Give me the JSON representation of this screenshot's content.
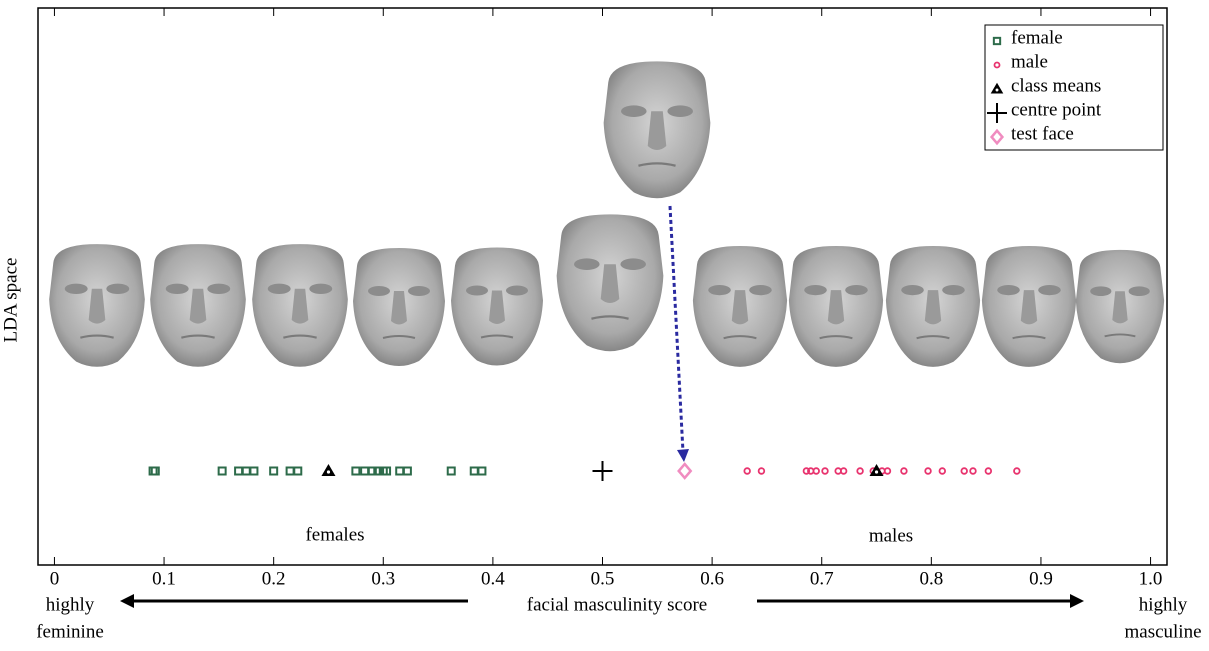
{
  "chart_data": {
    "type": "scatter",
    "ylabel": "LDA space",
    "xlabel": "facial masculinity score",
    "xlim": [
      -0.015,
      1.015
    ],
    "xticks": [
      0,
      0.1,
      0.2,
      0.3,
      0.4,
      0.5,
      0.6,
      0.7,
      0.8,
      0.9,
      {
        "value": 1,
        "label": "1.0"
      }
    ],
    "legend": "upper right",
    "group_labels": [
      "females",
      "males"
    ],
    "low_label": [
      "highly",
      "feminine"
    ],
    "high_label": [
      "highly",
      "masculine"
    ],
    "low_color": "#2a8a2a",
    "high_color": "#e020e0",
    "series": [
      {
        "name": "female",
        "color": "#2d6b4a",
        "marker": "square",
        "values": [
          0.09,
          0.092,
          0.153,
          0.168,
          0.175,
          0.182,
          0.2,
          0.215,
          0.222,
          0.275,
          0.283,
          0.29,
          0.295,
          0.3,
          0.303,
          0.315,
          0.322,
          0.362,
          0.383,
          0.39
        ]
      },
      {
        "name": "male",
        "color": "#e8336e",
        "marker": "circle",
        "values": [
          0.632,
          0.645,
          0.686,
          0.69,
          0.695,
          0.703,
          0.715,
          0.72,
          0.735,
          0.747,
          0.755,
          0.76,
          0.775,
          0.797,
          0.81,
          0.83,
          0.838,
          0.852,
          0.878
        ]
      },
      {
        "name": "class means",
        "color": "#000000",
        "marker": "triangle",
        "values": [
          0.25,
          0.75
        ]
      },
      {
        "name": "centre point",
        "color": "#000000",
        "marker": "plus",
        "values": [
          0.5
        ]
      },
      {
        "name": "test face",
        "color": "#f08cc0",
        "marker": "diamond",
        "values": [
          0.575
        ]
      }
    ]
  }
}
